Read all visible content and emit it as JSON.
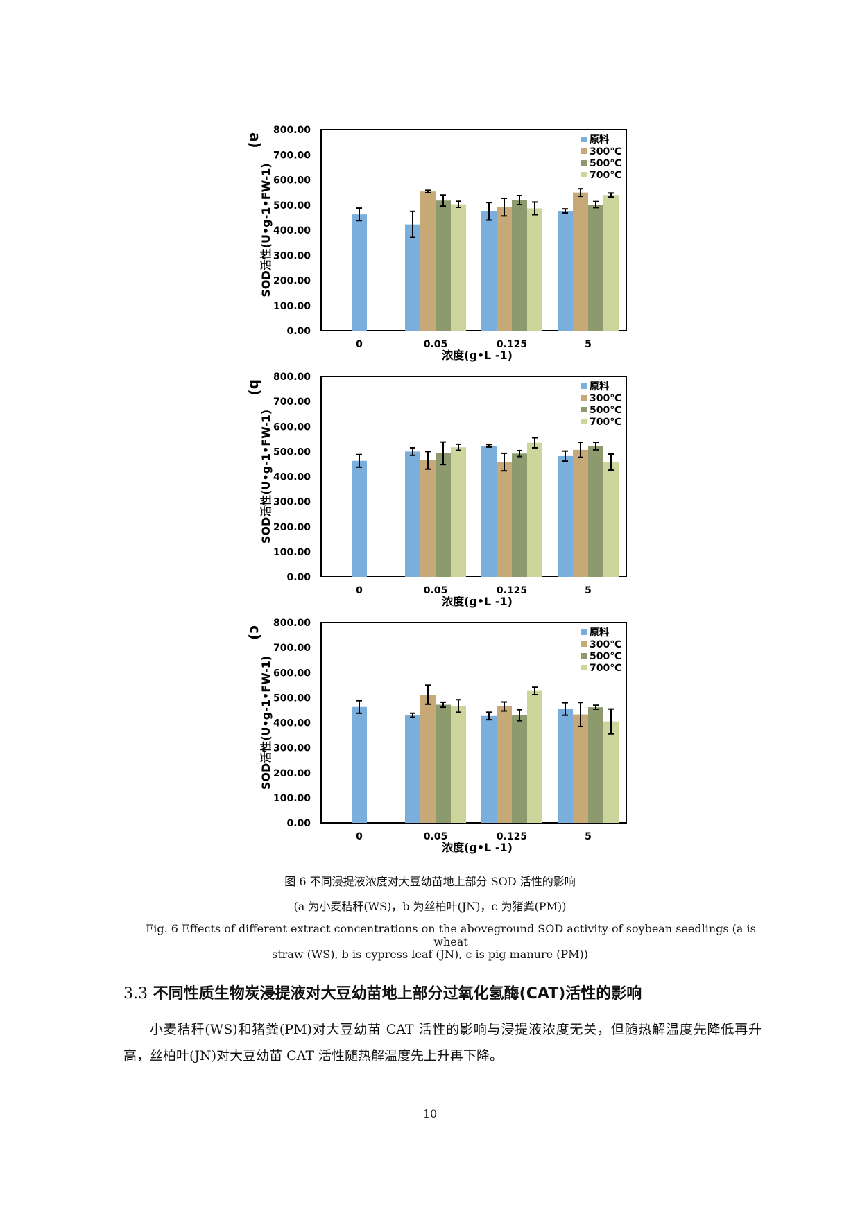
{
  "chart_data": [
    {
      "type": "bar",
      "panel_label": "a)",
      "categories": [
        "0",
        "0.05",
        "0.125",
        "5"
      ],
      "xlabel": "浓度(g•L -1)",
      "ylabel": "SOD活性(U•g-1•FW-1)",
      "ylim": [
        0,
        800
      ],
      "yticks": [
        "0.00",
        "100.00",
        "200.00",
        "300.00",
        "400.00",
        "500.00",
        "600.00",
        "700.00",
        "800.00"
      ],
      "legend_position": "top-right",
      "series": [
        {
          "name": "原料",
          "color": "#7aaedc",
          "values": [
            463,
            423,
            475,
            477
          ],
          "errors": [
            25,
            52,
            35,
            8
          ]
        },
        {
          "name": "300℃",
          "color": "#c7a877",
          "values": [
            null,
            554,
            492,
            550
          ],
          "errors": [
            null,
            5,
            35,
            15
          ]
        },
        {
          "name": "500℃",
          "color": "#8c9a6e",
          "values": [
            null,
            518,
            520,
            502
          ],
          "errors": [
            null,
            22,
            18,
            12
          ]
        },
        {
          "name": "700℃",
          "color": "#ccd59c",
          "values": [
            null,
            503,
            487,
            540
          ],
          "errors": [
            null,
            12,
            25,
            8
          ]
        }
      ]
    },
    {
      "type": "bar",
      "panel_label": "b)",
      "categories": [
        "0",
        "0.05",
        "0.125",
        "5"
      ],
      "xlabel": "浓度(g•L -1)",
      "ylabel": "SOD活性(U•g-1•FW-1)",
      "ylim": [
        0,
        800
      ],
      "yticks": [
        "0.00",
        "100.00",
        "200.00",
        "300.00",
        "400.00",
        "500.00",
        "600.00",
        "700.00",
        "800.00"
      ],
      "legend_position": "top-right",
      "series": [
        {
          "name": "原料",
          "color": "#7aaedc",
          "values": [
            463,
            500,
            523,
            482
          ],
          "errors": [
            25,
            15,
            5,
            20
          ]
        },
        {
          "name": "300℃",
          "color": "#c7a877",
          "values": [
            null,
            465,
            458,
            507
          ],
          "errors": [
            null,
            35,
            35,
            30
          ]
        },
        {
          "name": "500℃",
          "color": "#8c9a6e",
          "values": [
            null,
            493,
            492,
            522
          ],
          "errors": [
            null,
            45,
            12,
            15
          ]
        },
        {
          "name": "700℃",
          "color": "#ccd59c",
          "values": [
            null,
            517,
            535,
            458
          ],
          "errors": [
            null,
            12,
            20,
            32
          ]
        }
      ]
    },
    {
      "type": "bar",
      "panel_label": "c)",
      "categories": [
        "0",
        "0.05",
        "0.125",
        "5"
      ],
      "xlabel": "浓度(g•L -1)",
      "ylabel": "SOD活性(U•g-1•FW-1)",
      "ylim": [
        0,
        800
      ],
      "yticks": [
        "0.00",
        "100.00",
        "200.00",
        "300.00",
        "400.00",
        "500.00",
        "600.00",
        "700.00",
        "800.00"
      ],
      "legend_position": "top-right",
      "series": [
        {
          "name": "原料",
          "color": "#7aaedc",
          "values": [
            463,
            430,
            427,
            455
          ],
          "errors": [
            25,
            8,
            15,
            25
          ]
        },
        {
          "name": "300℃",
          "color": "#c7a877",
          "values": [
            null,
            512,
            465,
            433
          ],
          "errors": [
            null,
            38,
            18,
            48
          ]
        },
        {
          "name": "500℃",
          "color": "#8c9a6e",
          "values": [
            null,
            472,
            430,
            462
          ],
          "errors": [
            null,
            10,
            22,
            8
          ]
        },
        {
          "name": "700℃",
          "color": "#ccd59c",
          "values": [
            null,
            467,
            527,
            405
          ],
          "errors": [
            null,
            25,
            15,
            50
          ]
        }
      ]
    }
  ],
  "caption": {
    "cn_line1": "图 6  不同浸提液浓度对大豆幼苗地上部分 SOD 活性的影响",
    "cn_line2": "(a 为小麦秸秆(WS)，b 为丝柏叶(JN)，c 为猪粪(PM))",
    "en_line1": "Fig. 6 Effects of different extract concentrations on the aboveground SOD activity of soybean seedlings (a is wheat",
    "en_line2": "straw (WS), b is cypress leaf (JN), c is pig manure (PM))"
  },
  "section": {
    "number": "3.3",
    "title": "不同性质生物炭浸提液对大豆幼苗地上部分过氧化氢酶(CAT)活性的影响"
  },
  "body_text": "小麦秸秆(WS)和猪粪(PM)对大豆幼苗 CAT 活性的影响与浸提液浓度无关，但随热解温度先降低再升高，丝柏叶(JN)对大豆幼苗 CAT 活性随热解温度先上升再下降。",
  "page_number": "10"
}
